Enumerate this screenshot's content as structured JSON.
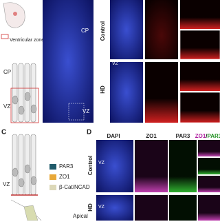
{
  "panel_a": {
    "legend": "Ventricular zone (VZ)",
    "sketch_labels": [
      "CP",
      "VZ"
    ]
  },
  "panel_b": {
    "labels": [
      "CP",
      "VZ"
    ]
  },
  "panel_right": {
    "rows": [
      "Control",
      "HD"
    ],
    "inner_label": "VZ"
  },
  "panel_c": {
    "letter": "C",
    "zone": "VZ",
    "legend": [
      "PAR3",
      "ZO1",
      "β-Cat/NCAD"
    ],
    "bottom_label": "Apical"
  },
  "panel_d": {
    "letter": "D",
    "columns": [
      "DAPI",
      "ZO1",
      "PAR3"
    ],
    "merge": [
      "ZO1",
      "/",
      "PAR3"
    ],
    "rows": [
      "Control",
      "HD"
    ],
    "inner_labels": [
      "VZ",
      "VZ"
    ]
  }
}
